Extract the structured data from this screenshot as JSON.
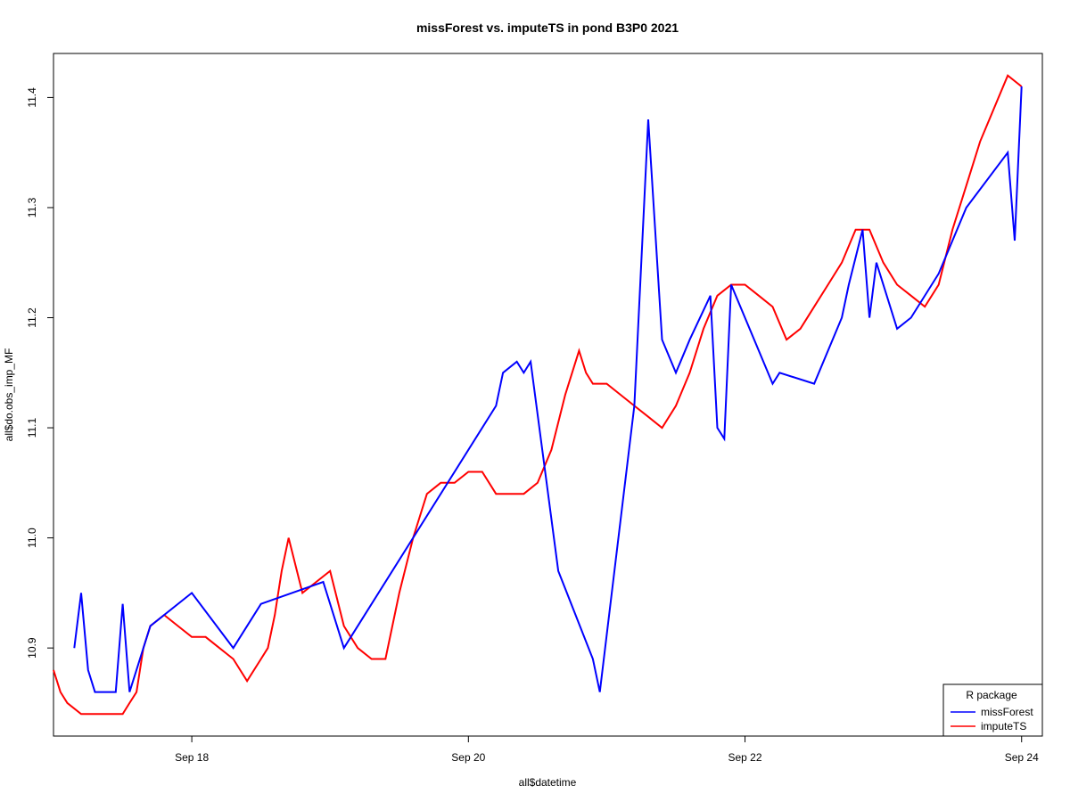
{
  "chart_data": {
    "type": "line",
    "title": "missForest vs. imputeTS in pond B3P0 2021",
    "xlabel": "all$datetime",
    "ylabel": "all$do.obs_imp_MF",
    "x_unit": "days",
    "xlim": [
      17.0,
      24.15
    ],
    "ylim": [
      10.82,
      11.44
    ],
    "x_ticks": [
      {
        "value": 18,
        "label": "Sep 18"
      },
      {
        "value": 20,
        "label": "Sep 20"
      },
      {
        "value": 22,
        "label": "Sep 22"
      },
      {
        "value": 24,
        "label": "Sep 24"
      }
    ],
    "y_ticks": [
      {
        "value": 10.9,
        "label": "10.9"
      },
      {
        "value": 11.0,
        "label": "11.0"
      },
      {
        "value": 11.1,
        "label": "11.1"
      },
      {
        "value": 11.2,
        "label": "11.2"
      },
      {
        "value": 11.3,
        "label": "11.3"
      },
      {
        "value": 11.4,
        "label": "11.4"
      }
    ],
    "grid": false,
    "legend": {
      "title": "R package",
      "position": "bottom-right",
      "entries": [
        {
          "name": "missForest",
          "color": "#0000FF"
        },
        {
          "name": "imputeTS",
          "color": "#FF0000"
        }
      ]
    },
    "series": [
      {
        "name": "imputeTS",
        "color": "#FF0000",
        "x": [
          17.0,
          17.05,
          17.1,
          17.2,
          17.3,
          17.4,
          17.5,
          17.55,
          17.6,
          17.65,
          17.7,
          17.8,
          17.9,
          18.0,
          18.1,
          18.2,
          18.3,
          18.4,
          18.5,
          18.55,
          18.6,
          18.65,
          18.7,
          18.8,
          18.9,
          19.0,
          19.1,
          19.2,
          19.3,
          19.4,
          19.5,
          19.6,
          19.7,
          19.8,
          19.9,
          20.0,
          20.1,
          20.2,
          20.3,
          20.4,
          20.5,
          20.6,
          20.7,
          20.8,
          20.85,
          20.9,
          21.0,
          21.1,
          21.2,
          21.3,
          21.4,
          21.5,
          21.6,
          21.7,
          21.8,
          21.9,
          22.0,
          22.1,
          22.2,
          22.3,
          22.4,
          22.5,
          22.6,
          22.7,
          22.8,
          22.9,
          23.0,
          23.1,
          23.2,
          23.3,
          23.4,
          23.5,
          23.6,
          23.7,
          23.8,
          23.9,
          24.0
        ],
        "y": [
          10.88,
          10.86,
          10.85,
          10.84,
          10.84,
          10.84,
          10.84,
          10.85,
          10.86,
          10.9,
          10.92,
          10.93,
          10.92,
          10.91,
          10.91,
          10.9,
          10.89,
          10.87,
          10.89,
          10.9,
          10.93,
          10.97,
          11.0,
          10.95,
          10.96,
          10.97,
          10.92,
          10.9,
          10.89,
          10.89,
          10.95,
          11.0,
          11.04,
          11.05,
          11.05,
          11.06,
          11.06,
          11.04,
          11.04,
          11.04,
          11.05,
          11.08,
          11.13,
          11.17,
          11.15,
          11.14,
          11.14,
          11.13,
          11.12,
          11.11,
          11.1,
          11.12,
          11.15,
          11.19,
          11.22,
          11.23,
          11.23,
          11.22,
          11.21,
          11.18,
          11.19,
          11.21,
          11.23,
          11.25,
          11.28,
          11.28,
          11.25,
          11.23,
          11.22,
          11.21,
          11.23,
          11.28,
          11.32,
          11.36,
          11.39,
          11.42,
          11.41
        ]
      },
      {
        "name": "missForest",
        "color": "#0000FF",
        "x": [
          17.15,
          17.2,
          17.25,
          17.3,
          17.35,
          17.45,
          17.5,
          17.55,
          17.7,
          18.0,
          18.3,
          18.5,
          18.95,
          19.1,
          20.2,
          20.25,
          20.35,
          20.4,
          20.45,
          20.65,
          20.9,
          20.95,
          21.2,
          21.3,
          21.4,
          21.5,
          21.6,
          21.75,
          21.8,
          21.85,
          21.9,
          22.2,
          22.25,
          22.5,
          22.7,
          22.75,
          22.85,
          22.9,
          22.95,
          23.1,
          23.2,
          23.4,
          23.6,
          23.9,
          23.95,
          24.0
        ],
        "y": [
          10.9,
          10.95,
          10.88,
          10.86,
          10.86,
          10.86,
          10.94,
          10.86,
          10.92,
          10.95,
          10.9,
          10.94,
          10.96,
          10.9,
          11.12,
          11.15,
          11.16,
          11.15,
          11.16,
          10.97,
          10.89,
          10.86,
          11.12,
          11.38,
          11.18,
          11.15,
          11.18,
          11.22,
          11.1,
          11.09,
          11.23,
          11.14,
          11.15,
          11.14,
          11.2,
          11.23,
          11.28,
          11.2,
          11.25,
          11.19,
          11.2,
          11.24,
          11.3,
          11.35,
          11.27,
          11.41
        ]
      }
    ]
  }
}
